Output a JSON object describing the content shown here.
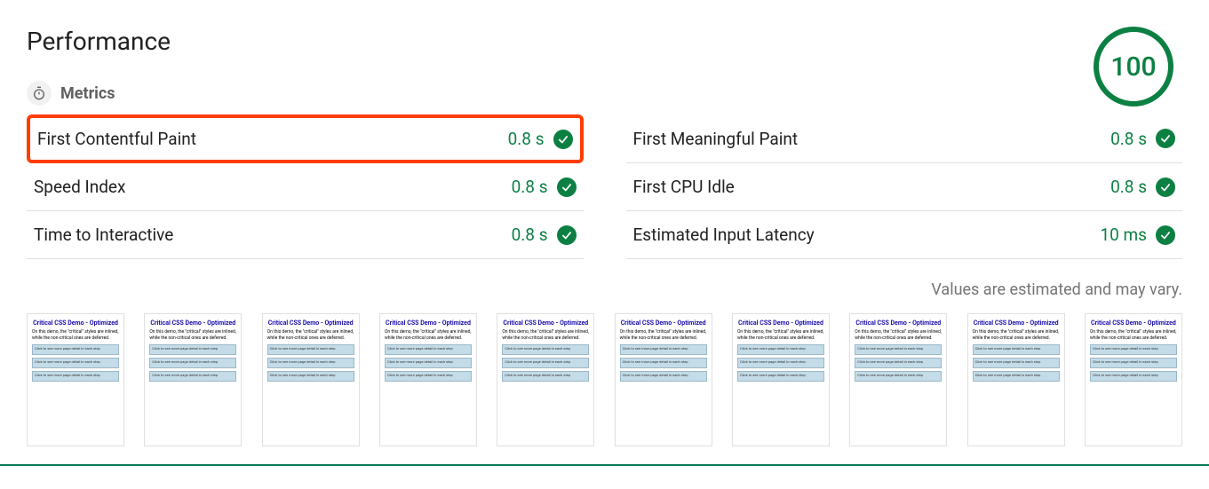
{
  "title": "Performance",
  "metrics_section_label": "Metrics",
  "score": {
    "value": "100",
    "ring_color": "#0c8043",
    "text_color": "#0c8043"
  },
  "highlight_color": "#ff3d00",
  "pass_color": "#0c8043",
  "divider_color": "#e0e0e0",
  "metrics": [
    {
      "name": "First Contentful Paint",
      "value": "0.8 s",
      "pass": true,
      "highlight": true
    },
    {
      "name": "First Meaningful Paint",
      "value": "0.8 s",
      "pass": true,
      "highlight": false
    },
    {
      "name": "Speed Index",
      "value": "0.8 s",
      "pass": true,
      "highlight": false
    },
    {
      "name": "First CPU Idle",
      "value": "0.8 s",
      "pass": true,
      "highlight": false
    },
    {
      "name": "Time to Interactive",
      "value": "0.8 s",
      "pass": true,
      "highlight": false
    },
    {
      "name": "Estimated Input Latency",
      "value": "10 ms",
      "pass": true,
      "highlight": false
    }
  ],
  "estimate_note": "Values are estimated and may vary.",
  "filmstrip": {
    "count": 10,
    "thumb_title": "Critical CSS Demo - Optimized",
    "thumb_desc": "On this demo, the \"critical\" styles are inlined, while the non-critical ones are deferred.",
    "thumb_block_text": "Click to see more page detail in each step",
    "thumb_bg": "#ffffff",
    "thumb_border": "#e0e0e0",
    "thumb_title_color": "#1a0dab",
    "thumb_block_bg": "#c3dce8"
  }
}
